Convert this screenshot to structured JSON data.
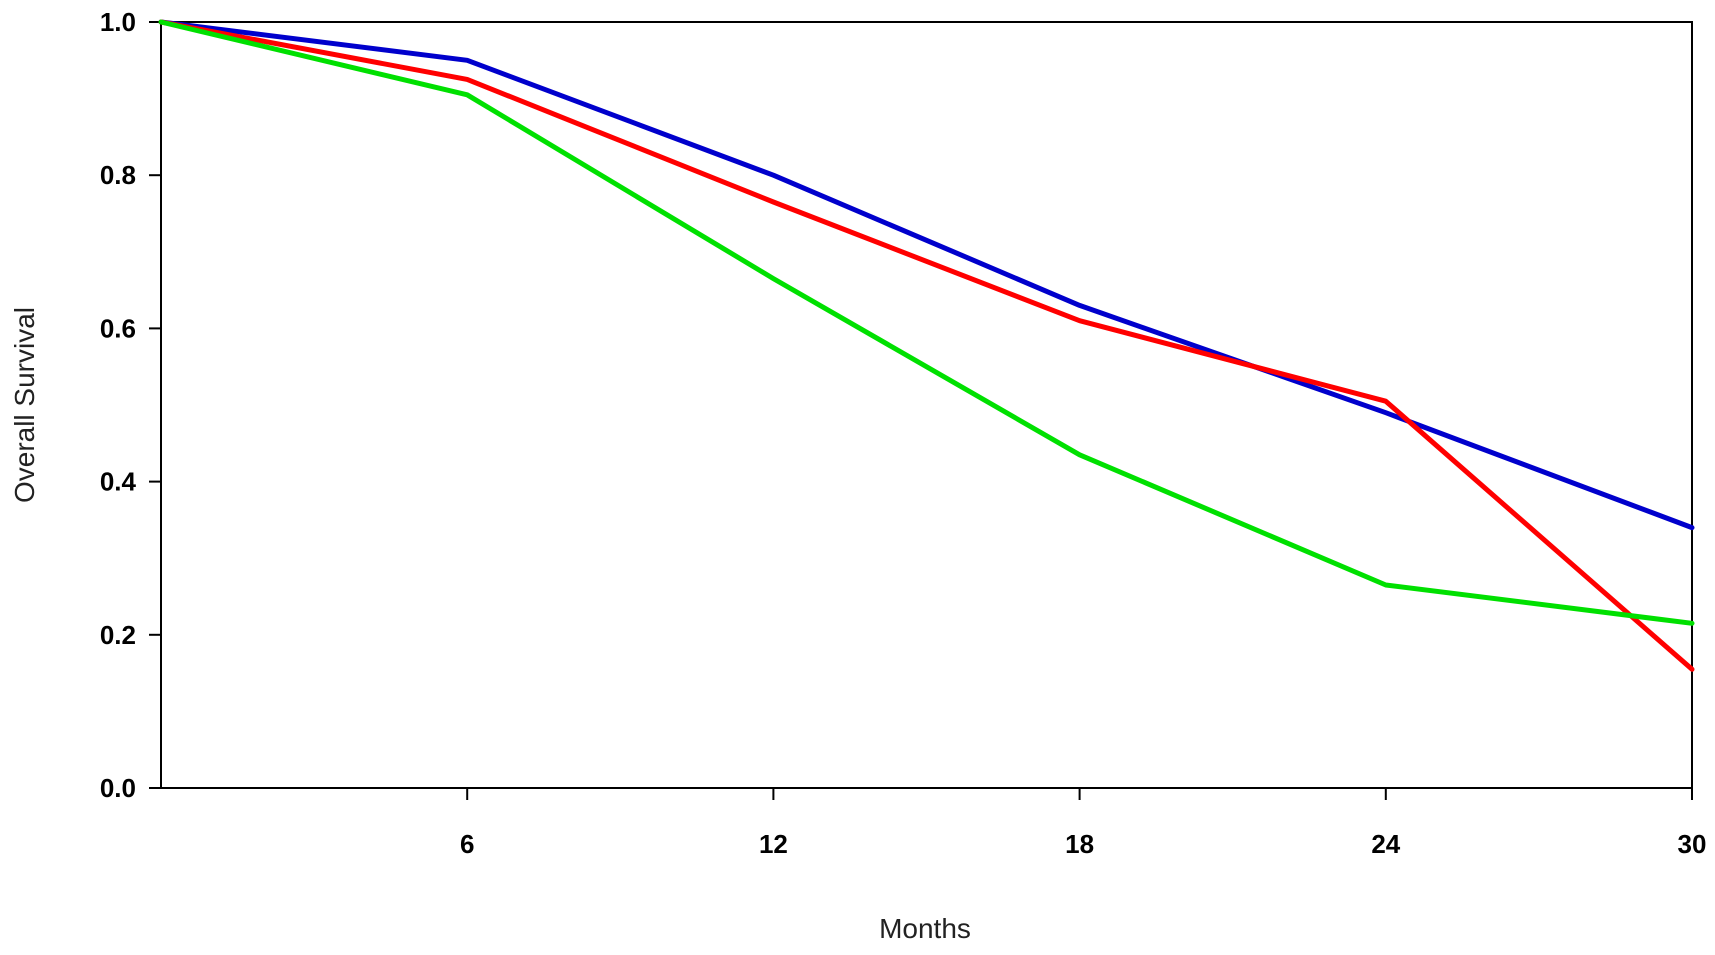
{
  "chart_data": {
    "type": "line",
    "xlabel": "Months",
    "ylabel": "Overall Survival",
    "xlim": [
      0,
      30
    ],
    "ylim": [
      0,
      1
    ],
    "x_ticks": [
      6,
      12,
      18,
      24,
      30
    ],
    "x_tick_labels": [
      "6",
      "12",
      "18",
      "24",
      "30"
    ],
    "y_ticks": [
      0,
      0.2,
      0.4,
      0.6,
      0.8,
      1.0
    ],
    "y_tick_labels": [
      "0.0",
      "0.2",
      "0.4",
      "0.6",
      "0.8",
      "1.0"
    ],
    "grid": false,
    "series": [
      {
        "color": "#0000cc",
        "x": [
          0,
          6,
          12,
          18,
          24,
          30
        ],
        "y": [
          1.0,
          0.95,
          0.8,
          0.63,
          0.49,
          0.34
        ]
      },
      {
        "color": "#ff0000",
        "x": [
          0,
          6,
          12,
          18,
          24,
          30
        ],
        "y": [
          1.0,
          0.925,
          0.765,
          0.61,
          0.505,
          0.155
        ]
      },
      {
        "color": "#00e000",
        "x": [
          0,
          6,
          12,
          18,
          24,
          30
        ],
        "y": [
          1.0,
          0.905,
          0.665,
          0.435,
          0.265,
          0.215
        ]
      }
    ]
  }
}
